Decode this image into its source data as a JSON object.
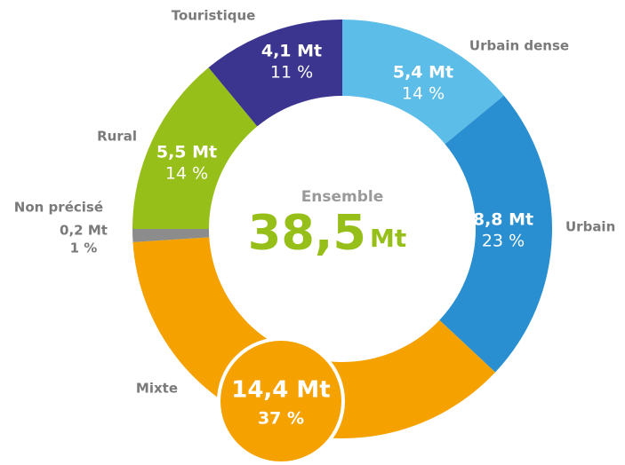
{
  "chart_data": {
    "type": "donut",
    "categories": [
      "Urbain dense",
      "Urbain",
      "Mixte",
      "Non précisé",
      "Rural",
      "Touristique"
    ],
    "values": [
      5.4,
      8.8,
      14.4,
      0.2,
      5.5,
      4.1
    ],
    "value_labels": [
      "5,4 Mt",
      "8,8 Mt",
      "14,4 Mt",
      "0,2 Mt",
      "5,5 Mt",
      "4,1 Mt"
    ],
    "percents": [
      14,
      23,
      37,
      1,
      14,
      11
    ],
    "percent_labels": [
      "14 %",
      "23 %",
      "37 %",
      "1 %",
      "14 %",
      "11 %"
    ],
    "colors": [
      "#5bbde8",
      "#2a8fd0",
      "#f5a100",
      "#8c8c8c",
      "#97bf1a",
      "#3b3590"
    ],
    "total": {
      "label": "Ensemble",
      "value": 38.5,
      "value_label": "38,5",
      "unit": "Mt"
    }
  }
}
